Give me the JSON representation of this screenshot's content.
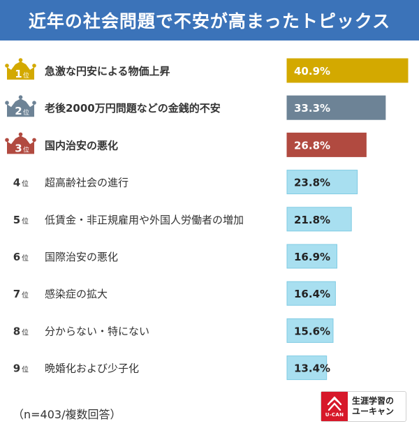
{
  "title": "近年の社会問題で不安が高まったトピックス",
  "footnote": "（n=403/複数回答）",
  "logo": {
    "brand": "U-CAN",
    "line1": "生涯学習の",
    "line2": "ユーキャン"
  },
  "colors": {
    "rank1": "#d3a900",
    "rank2": "#6d8396",
    "rank3": "#b14a40",
    "other": "#a8dff0",
    "other_border": "#7fcbe3"
  },
  "rank_suffix": "位",
  "chart_data": {
    "type": "bar",
    "orientation": "horizontal",
    "title": "近年の社会問題で不安が高まったトピックス",
    "categories": [
      "急激な円安による物価上昇",
      "老後2000万円問題などの金銭的不安",
      "国内治安の悪化",
      "超高齢社会の進行",
      "低賃金・非正規雇用や外国人労働者の増加",
      "国際治安の悪化",
      "感染症の拡大",
      "分からない・特にない",
      "晩婚化および少子化"
    ],
    "ranks": [
      "1",
      "2",
      "3",
      "4",
      "5",
      "6",
      "7",
      "8",
      "9"
    ],
    "values": [
      40.9,
      33.3,
      26.8,
      23.8,
      21.8,
      16.9,
      16.4,
      15.6,
      13.4
    ],
    "value_labels": [
      "40.9%",
      "33.3%",
      "26.8%",
      "23.8%",
      "21.8%",
      "16.9%",
      "16.4%",
      "15.6%",
      "13.4%"
    ],
    "xlim": [
      0,
      40.9
    ]
  }
}
